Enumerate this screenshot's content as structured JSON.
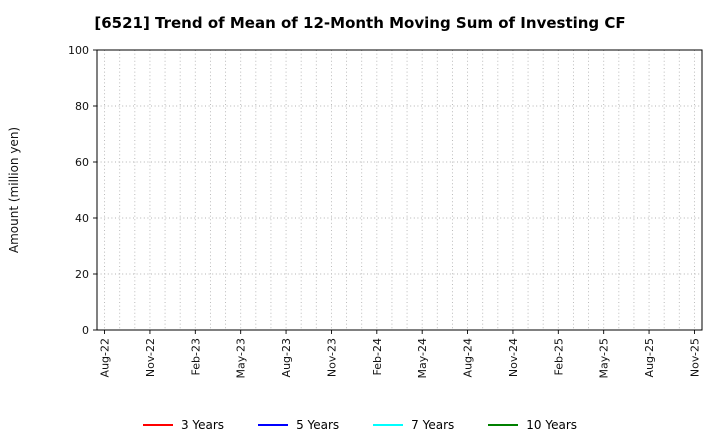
{
  "chart": {
    "title": "[6521]  Trend of Mean of 12-Month Moving Sum of Investing CF",
    "ylabel": "Amount (million yen)"
  },
  "chart_data": {
    "type": "line",
    "title": "[6521]  Trend of Mean of 12-Month Moving Sum of Investing CF",
    "xlabel": "",
    "ylabel": "Amount (million yen)",
    "ylim": [
      0,
      100
    ],
    "yticks": [
      0,
      20,
      40,
      60,
      80,
      100
    ],
    "x_tick_labels": [
      "Aug-22",
      "Nov-22",
      "Feb-23",
      "May-23",
      "Aug-23",
      "Nov-23",
      "Feb-24",
      "May-24",
      "Aug-24",
      "Nov-24",
      "Feb-25",
      "May-25",
      "Aug-25",
      "Nov-25"
    ],
    "months_span": 40,
    "x_tick_step_months": 3,
    "grid": true,
    "grid_style": "dotted",
    "legend_position": "bottom",
    "series": [
      {
        "name": "3 Years",
        "color": "#ff0000",
        "values": []
      },
      {
        "name": "5 Years",
        "color": "#0000ff",
        "values": []
      },
      {
        "name": "7 Years",
        "color": "#00ffff",
        "values": []
      },
      {
        "name": "10 Years",
        "color": "#008000",
        "values": []
      }
    ]
  }
}
